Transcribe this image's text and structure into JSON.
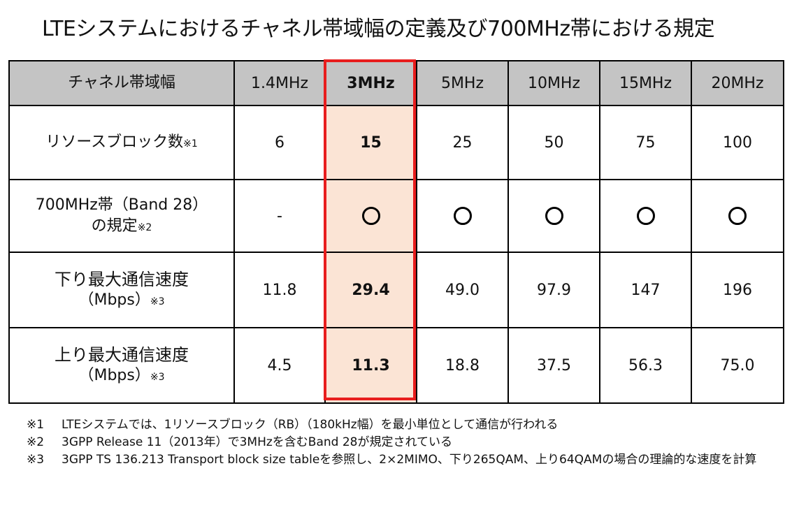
{
  "title": "LTEシステムにおけるチャネル帯域幅の定義及び700MHz帯における規定",
  "table": {
    "header": {
      "label": "チャネル帯域幅",
      "columns": [
        "1.4MHz",
        "3MHz",
        "5MHz",
        "10MHz",
        "15MHz",
        "20MHz"
      ]
    },
    "rows": [
      {
        "label_line1": "リソースブロック数",
        "label_line1_sup": "※1",
        "values": [
          "6",
          "15",
          "25",
          "50",
          "75",
          "100"
        ]
      },
      {
        "label_line1": "700MHz帯（Band 28）",
        "label_line2": "の規定",
        "label_line2_sup": "※2",
        "values": [
          "-",
          "○",
          "○",
          "○",
          "○",
          "○"
        ]
      },
      {
        "label_line1": "下り最大通信速度",
        "label_line2": "（Mbps）",
        "label_line2_sup": "※3",
        "values": [
          "11.8",
          "29.4",
          "49.0",
          "97.9",
          "147",
          "196"
        ]
      },
      {
        "label_line1": "上り最大通信速度",
        "label_line2": "（Mbps）",
        "label_line2_sup": "※3",
        "values": [
          "4.5",
          "11.3",
          "18.8",
          "37.5",
          "56.3",
          "75.0"
        ]
      }
    ],
    "highlighted_column": "3MHz",
    "highlight_color": "#fbe4d5",
    "highlight_border_color": "#e81d1d",
    "header_background": "#c4c4c4"
  },
  "notes": [
    {
      "mark": "※1",
      "text": "LTEシステムでは、1リソースブロック（RB）（180kHz幅）を最小単位として通信が行われる"
    },
    {
      "mark": "※2",
      "text": "3GPP Release 11（2013年）で3MHzを含むBand 28が規定されている"
    },
    {
      "mark": "※3",
      "text": "3GPP TS 136.213 Transport block size tableを参照し、2×2MIMO、下り265QAM、上り64QAMの場合の理論的な速度を計算"
    }
  ]
}
